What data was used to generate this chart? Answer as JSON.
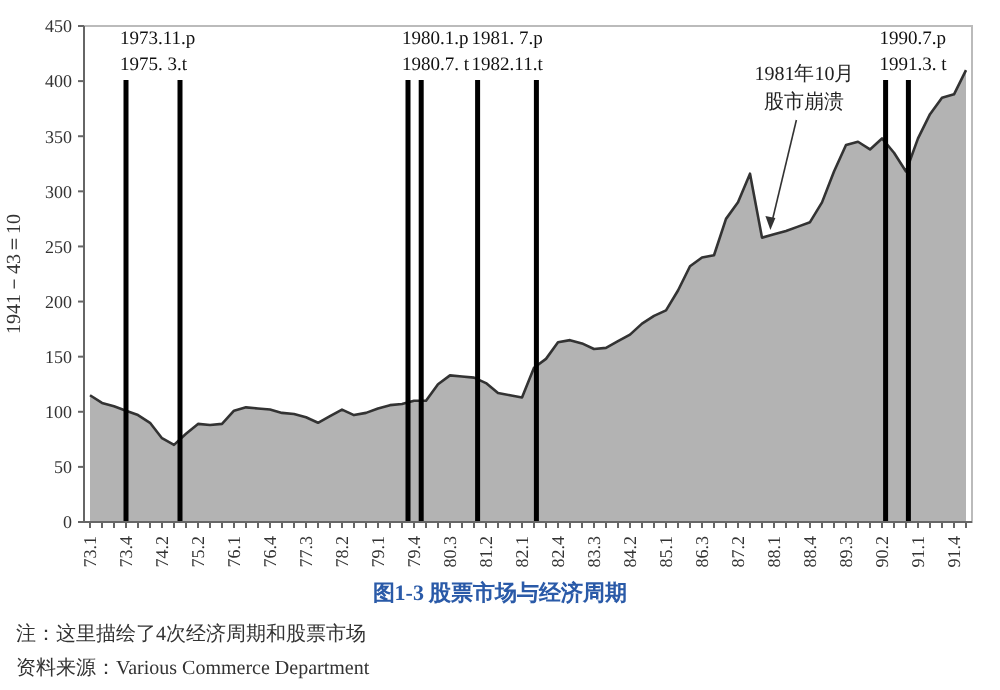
{
  "chart_data": {
    "type": "area",
    "title": "图1-3  股票市场与经济周期",
    "ylabel": "1941－43＝10",
    "categories": [
      "73.1",
      null,
      null,
      "73.4",
      null,
      null,
      "74.2",
      null,
      null,
      "75.2",
      null,
      null,
      "76.1",
      null,
      null,
      "76.4",
      null,
      null,
      "77.3",
      null,
      null,
      "78.2",
      null,
      null,
      "79.1",
      null,
      null,
      "79.4",
      null,
      null,
      "80.3",
      null,
      null,
      "81.2",
      null,
      null,
      "82.1",
      null,
      null,
      "82.4",
      null,
      null,
      "83.3",
      null,
      null,
      "84.2",
      null,
      null,
      "85.1",
      null,
      null,
      "86.3",
      null,
      null,
      "87.2",
      null,
      null,
      "88.1",
      null,
      null,
      "88.4",
      null,
      null,
      "89.3",
      null,
      null,
      "90.2",
      null,
      null,
      "91.1",
      null,
      null,
      "91.4",
      null
    ],
    "series": [
      {
        "color": "#b3b3b3",
        "values": [
          115,
          108,
          105,
          101,
          97,
          90,
          76,
          70,
          80,
          89,
          88,
          89,
          101,
          104,
          103,
          102,
          99,
          98,
          95,
          90,
          96,
          102,
          97,
          99,
          103,
          106,
          107,
          110,
          110,
          125,
          133,
          132,
          131,
          126,
          117,
          115,
          113,
          140,
          148,
          163,
          165,
          162,
          157,
          158,
          164,
          170,
          180,
          187,
          192,
          210,
          232,
          240,
          242,
          275,
          290,
          316,
          258,
          261,
          264,
          268,
          272,
          290,
          318,
          342,
          345,
          338,
          348,
          335,
          318,
          348,
          370,
          385,
          388,
          410
        ]
      }
    ],
    "ylim": [
      0,
      450
    ],
    "yticks": [
      0,
      50,
      100,
      150,
      200,
      250,
      300,
      350,
      400,
      450
    ],
    "annotations": [
      "1973.11.p",
      "1975.  3.t",
      "1980.1.p",
      "1980.7. t",
      "1981.  7.p",
      "1982.11.t",
      "1990.7.p",
      "1991.3. t",
      "1981年10月",
      "股市崩溃",
      "注：这里描绘了4次经济周期和股票市场",
      "资料来源：Various Commerce Department"
    ]
  }
}
